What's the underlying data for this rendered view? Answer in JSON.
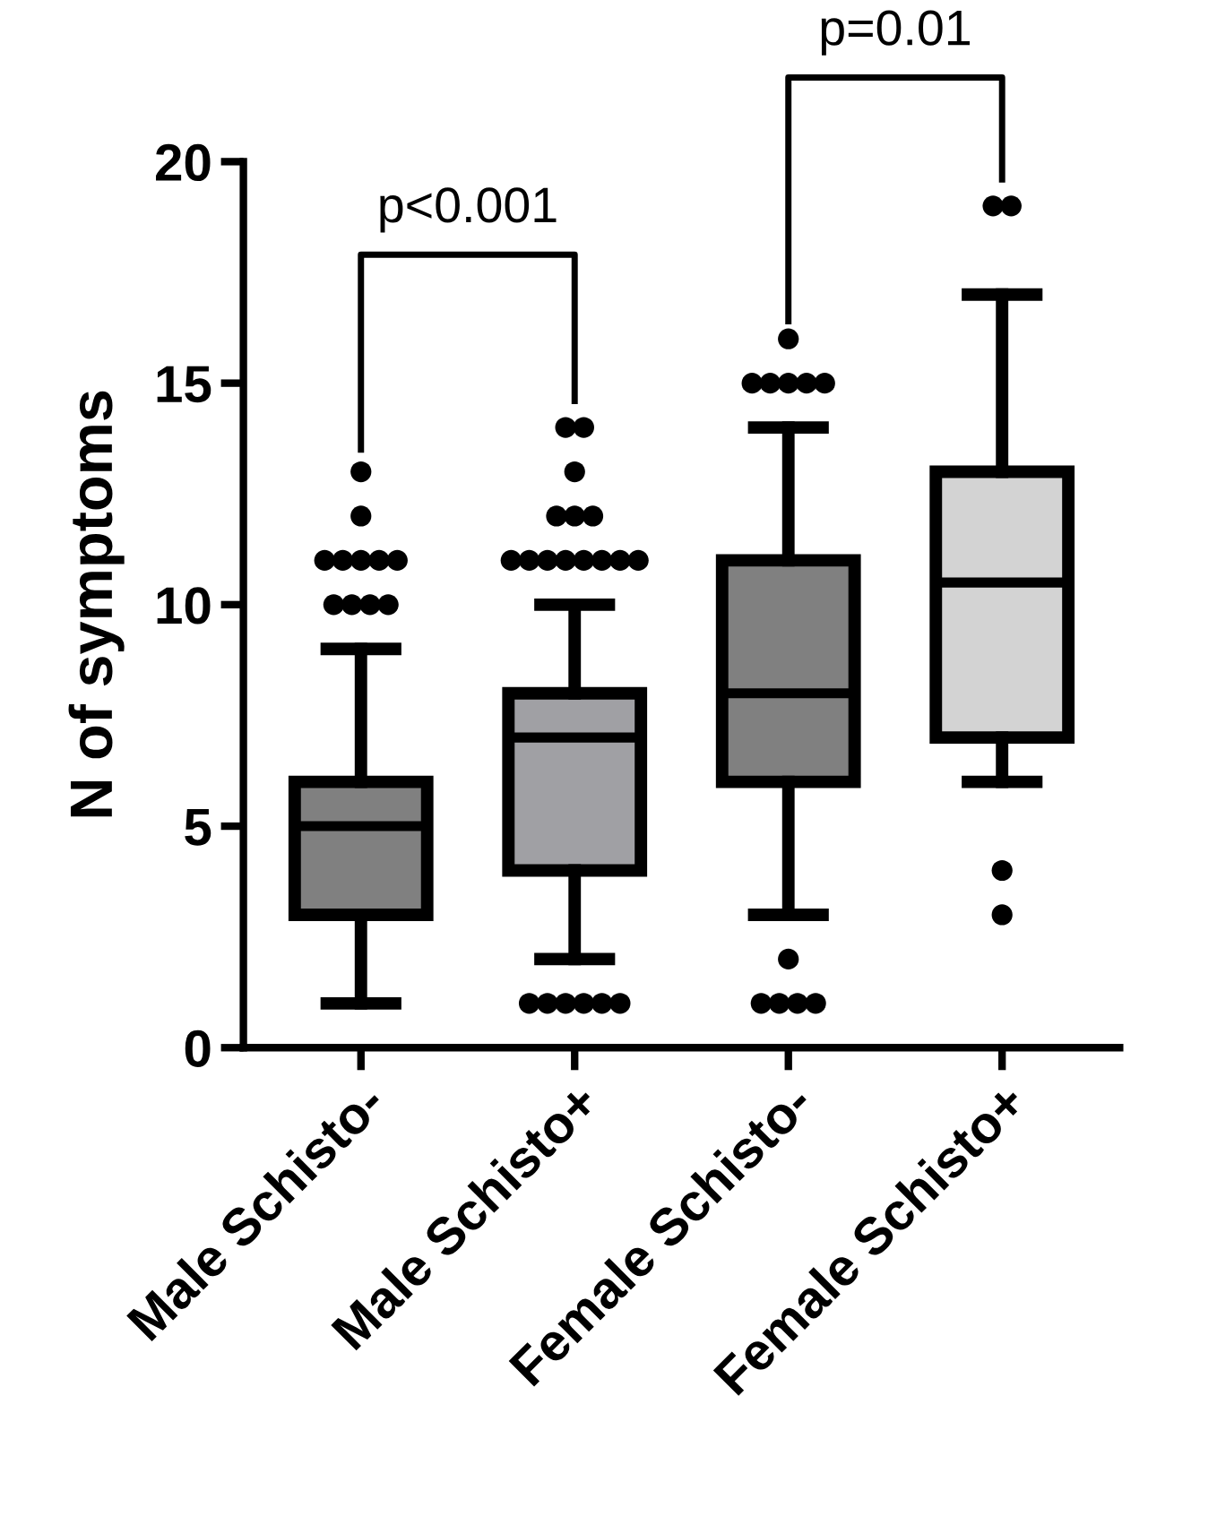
{
  "chart_data": {
    "type": "box",
    "ylabel": "N of symptoms",
    "categories": [
      "Male Schisto-",
      "Male Schisto+",
      "Female Schisto-",
      "Female Schisto+"
    ],
    "colors": [
      "#808080",
      "#a0a0a4",
      "#808080",
      "#d3d3d3"
    ],
    "boxes": [
      {
        "low": 1,
        "q1": 3,
        "median": 5,
        "q3": 6,
        "high": 9,
        "outliers": [
          10,
          10,
          10,
          10,
          11,
          11,
          11,
          11,
          11,
          12,
          13
        ]
      },
      {
        "low": 2,
        "q1": 4,
        "median": 7,
        "q3": 8,
        "high": 10,
        "outliers": [
          1,
          1,
          1,
          1,
          1,
          1,
          11,
          11,
          11,
          11,
          11,
          11,
          11,
          11,
          12,
          12,
          12,
          13,
          14,
          14
        ]
      },
      {
        "low": 3,
        "q1": 6,
        "median": 8,
        "q3": 11,
        "high": 14,
        "outliers": [
          1,
          1,
          1,
          1,
          2,
          15,
          15,
          15,
          15,
          15,
          16
        ]
      },
      {
        "low": 6,
        "q1": 7,
        "median": 10.5,
        "q3": 13,
        "high": 17,
        "outliers": [
          3,
          4,
          19,
          19
        ]
      }
    ],
    "ylim": [
      0,
      20
    ],
    "yticks": [
      0,
      5,
      10,
      15,
      20
    ],
    "grid": false,
    "legend": false,
    "annotations": [
      "p<0.001",
      "p=0.01"
    ]
  }
}
